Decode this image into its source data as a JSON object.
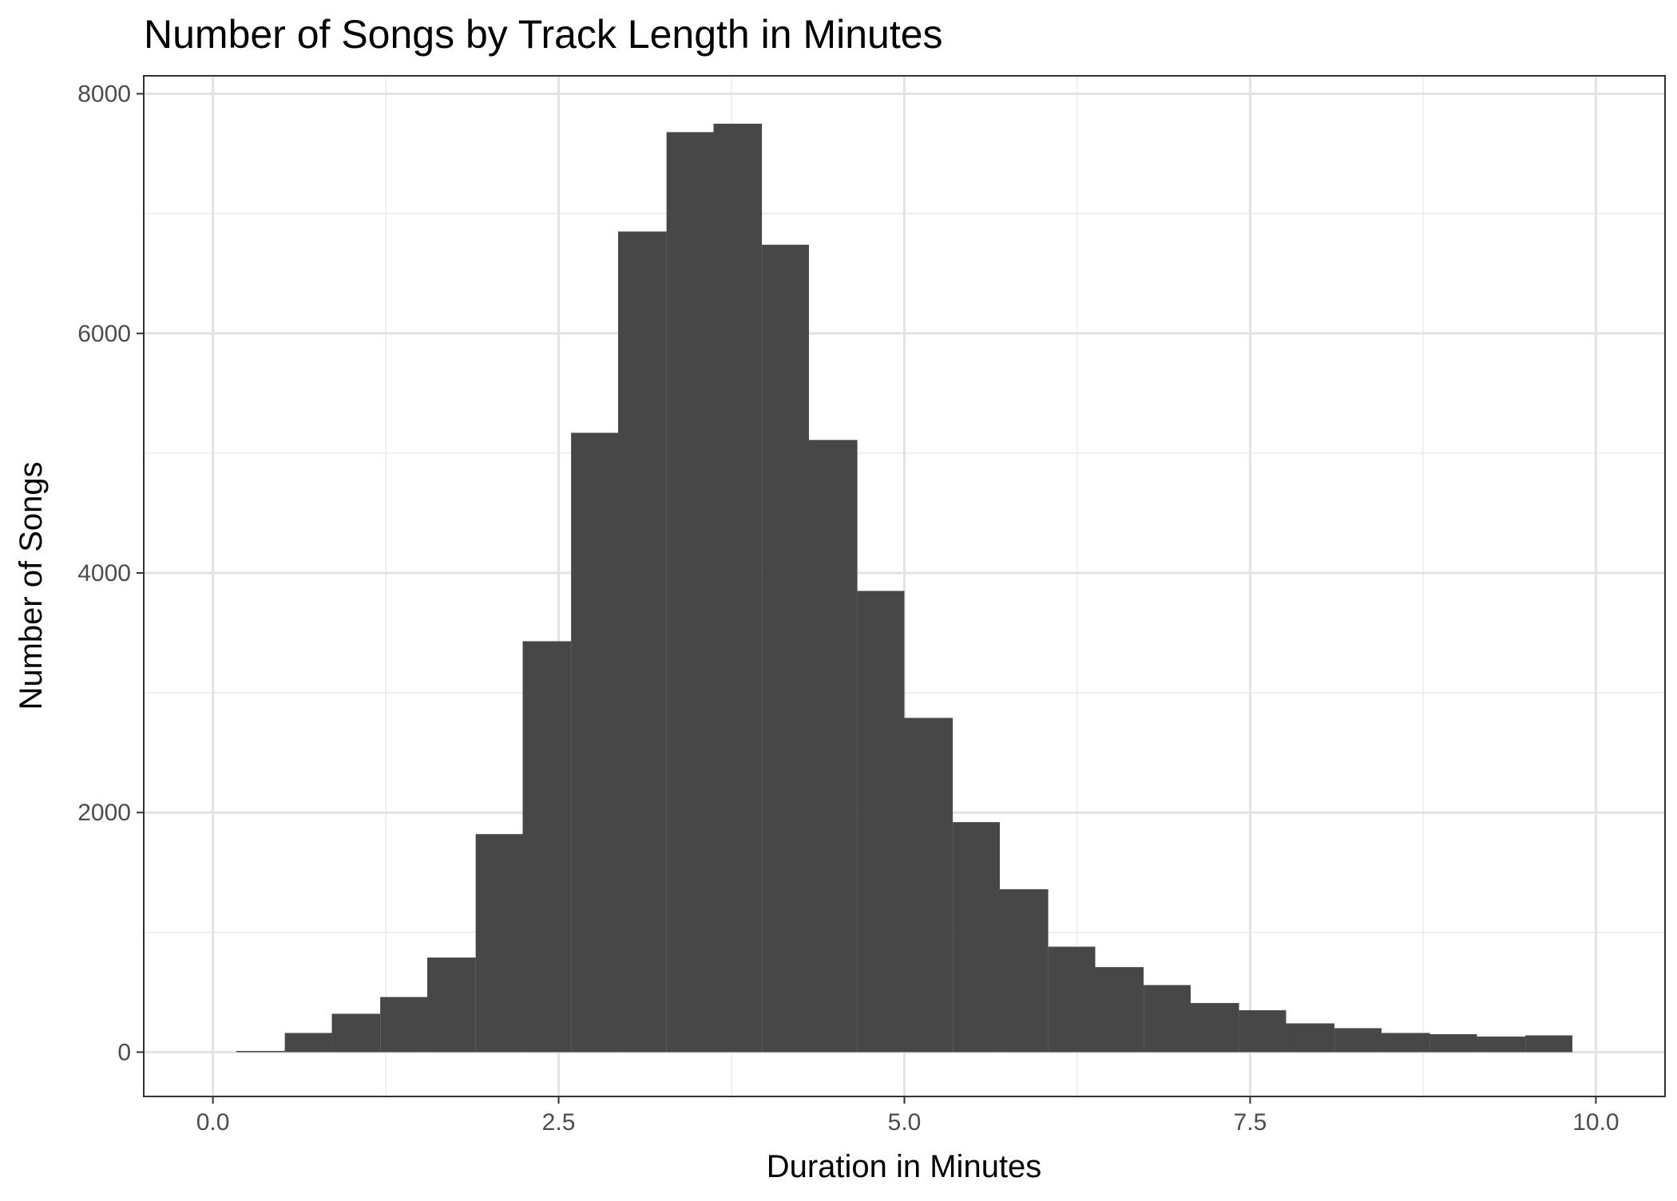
{
  "chart_data": {
    "type": "bar",
    "title": "Number of Songs by Track Length in Minutes",
    "xlabel": "Duration in Minutes",
    "ylabel": "Number of Songs",
    "xlim": [
      -0.5,
      10.5
    ],
    "ylim": [
      -370,
      8150
    ],
    "x_ticks": [
      0,
      2.5,
      5,
      7.5,
      10
    ],
    "x_tick_labels": [
      "0.0",
      "2.5",
      "5.0",
      "7.5",
      "10.0"
    ],
    "y_ticks": [
      0,
      2000,
      4000,
      6000,
      8000
    ],
    "y_tick_labels": [
      "0",
      "2000",
      "4000",
      "6000",
      "8000"
    ],
    "grid": true,
    "bar_color": "#474747",
    "bin_width": 0.345,
    "bins": [
      {
        "x0": 0.17,
        "x1": 0.52,
        "value": 10
      },
      {
        "x0": 0.52,
        "x1": 0.86,
        "value": 160
      },
      {
        "x0": 0.86,
        "x1": 1.21,
        "value": 320
      },
      {
        "x0": 1.21,
        "x1": 1.55,
        "value": 460
      },
      {
        "x0": 1.55,
        "x1": 1.9,
        "value": 790
      },
      {
        "x0": 1.9,
        "x1": 2.24,
        "value": 1820
      },
      {
        "x0": 2.24,
        "x1": 2.59,
        "value": 3430
      },
      {
        "x0": 2.59,
        "x1": 2.93,
        "value": 5170
      },
      {
        "x0": 2.93,
        "x1": 3.28,
        "value": 6850
      },
      {
        "x0": 3.28,
        "x1": 3.62,
        "value": 7680
      },
      {
        "x0": 3.62,
        "x1": 3.97,
        "value": 7750
      },
      {
        "x0": 3.97,
        "x1": 4.31,
        "value": 6740
      },
      {
        "x0": 4.31,
        "x1": 4.66,
        "value": 5110
      },
      {
        "x0": 4.66,
        "x1": 5.0,
        "value": 3850
      },
      {
        "x0": 5.0,
        "x1": 5.35,
        "value": 2790
      },
      {
        "x0": 5.35,
        "x1": 5.69,
        "value": 1920
      },
      {
        "x0": 5.69,
        "x1": 6.04,
        "value": 1360
      },
      {
        "x0": 6.04,
        "x1": 6.38,
        "value": 880
      },
      {
        "x0": 6.38,
        "x1": 6.73,
        "value": 710
      },
      {
        "x0": 6.73,
        "x1": 7.07,
        "value": 560
      },
      {
        "x0": 7.07,
        "x1": 7.42,
        "value": 410
      },
      {
        "x0": 7.42,
        "x1": 7.76,
        "value": 350
      },
      {
        "x0": 7.76,
        "x1": 8.11,
        "value": 240
      },
      {
        "x0": 8.11,
        "x1": 8.45,
        "value": 200
      },
      {
        "x0": 8.45,
        "x1": 8.8,
        "value": 160
      },
      {
        "x0": 8.8,
        "x1": 9.14,
        "value": 150
      },
      {
        "x0": 9.14,
        "x1": 9.49,
        "value": 130
      },
      {
        "x0": 9.49,
        "x1": 9.83,
        "value": 140
      }
    ]
  }
}
